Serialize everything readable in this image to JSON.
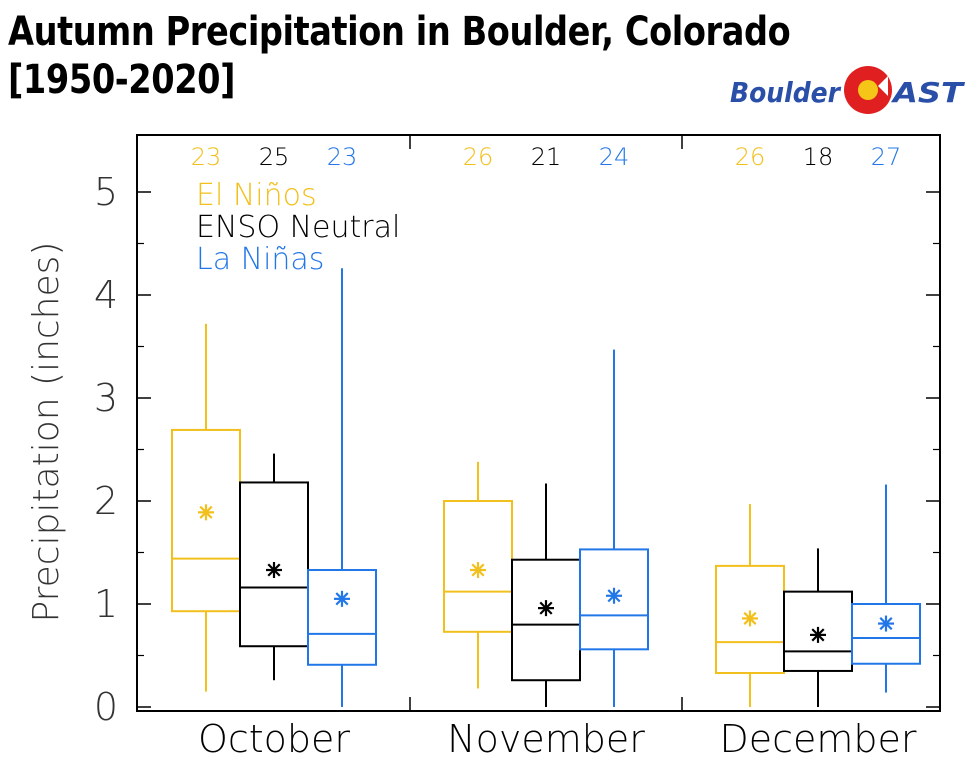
{
  "title_line1": "Autumn Precipitation in Boulder, Colorado",
  "title_line2": "[1950-2020]",
  "logo": {
    "text_left": "Boulder",
    "text_right": "AST"
  },
  "colors": {
    "el_nino": "#f2c01c",
    "neutral": "#000000",
    "la_nina": "#2277e8",
    "logo_blue": "#2a4fa8",
    "logo_red": "#e02020"
  },
  "chart_data": {
    "type": "box",
    "ylabel": "Precipitation (inches)",
    "xlabel": "",
    "ylim": [
      0,
      5.5
    ],
    "y_ticks": [
      0,
      1,
      2,
      3,
      4,
      5
    ],
    "categories": [
      "October",
      "November",
      "December"
    ],
    "legend": [
      "El Niños",
      "ENSO Neutral",
      "La Niñas"
    ],
    "legend_placement": "top-left",
    "series": [
      {
        "name": "El Niños",
        "counts": [
          23,
          26,
          26
        ],
        "boxes": [
          {
            "min": 0.15,
            "q1": 0.93,
            "median": 1.44,
            "q3": 2.69,
            "max": 3.72,
            "mean": 1.89
          },
          {
            "min": 0.18,
            "q1": 0.73,
            "median": 1.12,
            "q3": 2.0,
            "max": 2.38,
            "mean": 1.33
          },
          {
            "min": 0.0,
            "q1": 0.33,
            "median": 0.63,
            "q3": 1.37,
            "max": 1.97,
            "mean": 0.86
          }
        ]
      },
      {
        "name": "ENSO Neutral",
        "counts": [
          25,
          21,
          18
        ],
        "boxes": [
          {
            "min": 0.26,
            "q1": 0.59,
            "median": 1.16,
            "q3": 2.18,
            "max": 2.46,
            "mean": 1.33
          },
          {
            "min": 0.0,
            "q1": 0.26,
            "median": 0.8,
            "q3": 1.43,
            "max": 2.17,
            "mean": 0.96
          },
          {
            "min": 0.0,
            "q1": 0.35,
            "median": 0.54,
            "q3": 1.12,
            "max": 1.54,
            "mean": 0.7
          }
        ]
      },
      {
        "name": "La Niñas",
        "counts": [
          23,
          24,
          27
        ],
        "boxes": [
          {
            "min": 0.0,
            "q1": 0.41,
            "median": 0.71,
            "q3": 1.33,
            "max": 4.26,
            "mean": 1.05
          },
          {
            "min": 0.0,
            "q1": 0.56,
            "median": 0.89,
            "q3": 1.53,
            "max": 3.47,
            "mean": 1.08
          },
          {
            "min": 0.14,
            "q1": 0.42,
            "median": 0.67,
            "q3": 1.0,
            "max": 2.16,
            "mean": 0.81
          }
        ]
      }
    ]
  }
}
